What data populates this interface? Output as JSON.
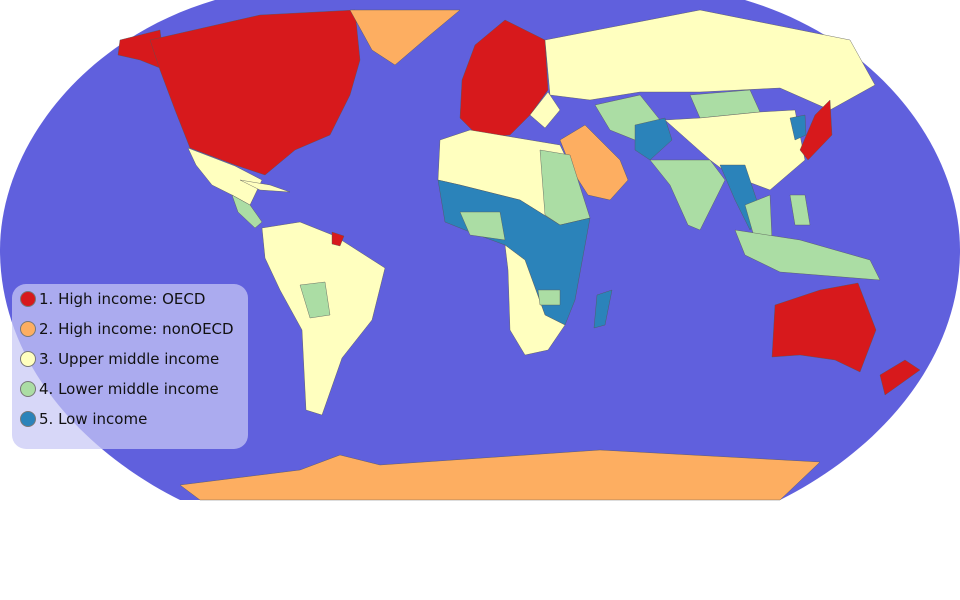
{
  "map": {
    "ocean_color": "#6060dd",
    "border_color": "#555555",
    "projection": "robinson"
  },
  "legend": {
    "placement": "bottom-left",
    "items": [
      {
        "label": "1. High income: OECD",
        "color": "#d7191c"
      },
      {
        "label": "2. High income: nonOECD",
        "color": "#fdae61"
      },
      {
        "label": "3. Upper middle income",
        "color": "#ffffbf"
      },
      {
        "label": "4. Lower middle income",
        "color": "#abdda4"
      },
      {
        "label": "5. Low income",
        "color": "#2b83ba"
      }
    ]
  }
}
